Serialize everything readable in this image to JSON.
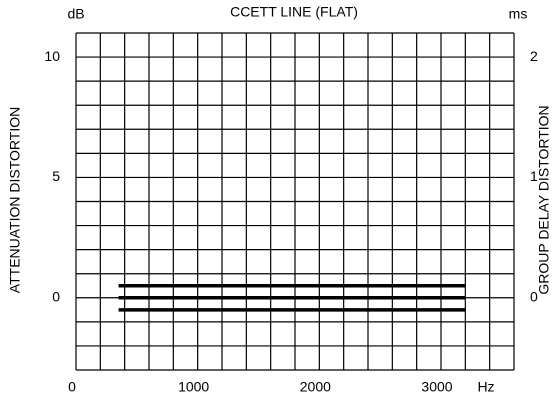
{
  "chart_data": {
    "type": "line",
    "title": "CCETT LINE (FLAT)",
    "y_unit": "dB",
    "y2_unit": "ms",
    "x_unit": "Hz",
    "ylabel": "ATTENUATION DISTORTION",
    "y2label": "GROUP DELAY DISTORTION",
    "xlim": [
      0,
      3600
    ],
    "xticks": [
      0,
      1000,
      2000,
      3000
    ],
    "xgrid": [
      0,
      200,
      400,
      600,
      800,
      1000,
      1200,
      1400,
      1600,
      1800,
      2000,
      2200,
      2400,
      2600,
      2800,
      3000,
      3200,
      3400,
      3600
    ],
    "ylim": [
      -3,
      11
    ],
    "yticks": [
      0,
      5,
      10
    ],
    "ygrid": [
      -3,
      -2,
      -1,
      0,
      1,
      2,
      3,
      4,
      5,
      6,
      7,
      8,
      9,
      10,
      11
    ],
    "y2lim": [
      -0.6,
      2.2
    ],
    "y2ticks": [
      0,
      1,
      2
    ],
    "grid": true,
    "series": [
      {
        "color": "#000000",
        "x": [
          350,
          3200
        ],
        "values": [
          0.5,
          0.5
        ]
      },
      {
        "color": "#000000",
        "x": [
          350,
          3200
        ],
        "values": [
          0,
          0
        ]
      },
      {
        "color": "#000000",
        "x": [
          350,
          3200
        ],
        "values": [
          -0.5,
          -0.5
        ]
      }
    ]
  }
}
